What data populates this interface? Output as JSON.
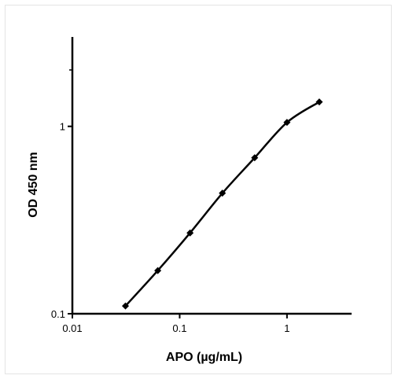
{
  "chart_data": {
    "type": "line",
    "xlabel": "APO (µg/mL)",
    "ylabel": "OD 450 nm",
    "xscale": "log",
    "yscale": "log",
    "xlim": [
      0.01,
      4
    ],
    "ylim": [
      0.1,
      3
    ],
    "xticks": [
      {
        "value": 0.01,
        "label": "0.01"
      },
      {
        "value": 0.1,
        "label": "0.1"
      },
      {
        "value": 1,
        "label": "1"
      }
    ],
    "yticks": [
      {
        "value": 0.1,
        "label": "0.1"
      },
      {
        "value": 1,
        "label": "1"
      }
    ],
    "grid": false,
    "marker": "diamond",
    "series": [
      {
        "color": "#000000",
        "x": [
          0.03125,
          0.0625,
          0.125,
          0.25,
          0.5,
          1,
          2
        ],
        "y": [
          0.11,
          0.17,
          0.27,
          0.44,
          0.68,
          1.05,
          1.35
        ]
      }
    ]
  }
}
